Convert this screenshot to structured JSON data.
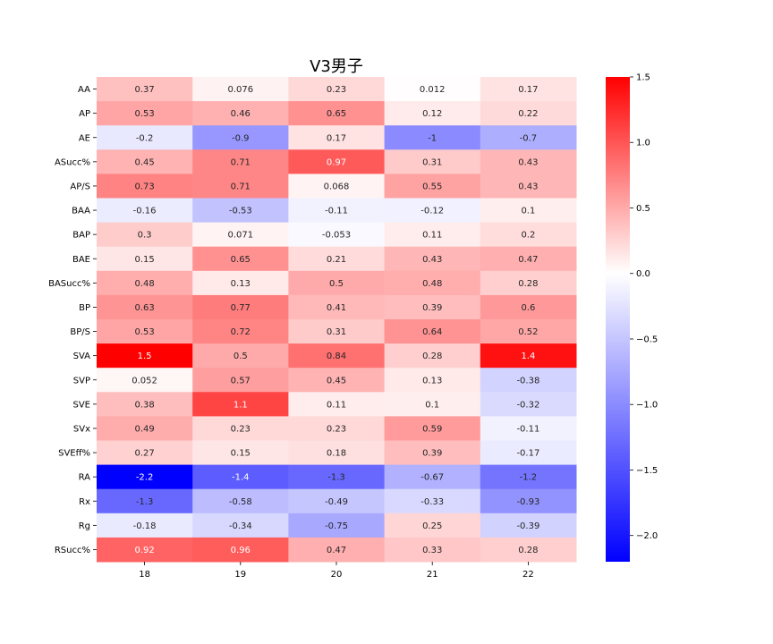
{
  "chart_data": {
    "type": "heatmap",
    "title": "V3男子",
    "xlabel": "",
    "ylabel": "",
    "x_categories": [
      "18",
      "19",
      "20",
      "21",
      "22"
    ],
    "y_categories": [
      "AA",
      "AP",
      "AE",
      "ASucc%",
      "AP/S",
      "BAA",
      "BAP",
      "BAE",
      "BASucc%",
      "BP",
      "BP/S",
      "SVA",
      "SVP",
      "SVE",
      "SVx",
      "SVEff%",
      "RA",
      "Rx",
      "Rg",
      "RSucc%"
    ],
    "values": [
      [
        0.37,
        0.076,
        0.23,
        0.012,
        0.17
      ],
      [
        0.53,
        0.46,
        0.65,
        0.12,
        0.22
      ],
      [
        -0.2,
        -0.9,
        0.17,
        -1,
        -0.7
      ],
      [
        0.45,
        0.71,
        0.97,
        0.31,
        0.43
      ],
      [
        0.73,
        0.71,
        0.068,
        0.55,
        0.43
      ],
      [
        -0.16,
        -0.53,
        -0.11,
        -0.12,
        0.1
      ],
      [
        0.3,
        0.071,
        -0.053,
        0.11,
        0.2
      ],
      [
        0.15,
        0.65,
        0.21,
        0.43,
        0.47
      ],
      [
        0.48,
        0.13,
        0.5,
        0.48,
        0.28
      ],
      [
        0.63,
        0.77,
        0.41,
        0.39,
        0.6
      ],
      [
        0.53,
        0.72,
        0.31,
        0.64,
        0.52
      ],
      [
        1.5,
        0.5,
        0.84,
        0.28,
        1.4
      ],
      [
        0.052,
        0.57,
        0.45,
        0.13,
        -0.38
      ],
      [
        0.38,
        1.1,
        0.11,
        0.1,
        -0.32
      ],
      [
        0.49,
        0.23,
        0.23,
        0.59,
        -0.11
      ],
      [
        0.27,
        0.15,
        0.18,
        0.39,
        -0.17
      ],
      [
        -2.2,
        -1.4,
        -1.3,
        -0.67,
        -1.2
      ],
      [
        -1.3,
        -0.58,
        -0.49,
        -0.33,
        -0.93
      ],
      [
        -0.18,
        -0.34,
        -0.75,
        0.25,
        -0.39
      ],
      [
        0.92,
        0.96,
        0.47,
        0.33,
        0.28
      ]
    ],
    "colormap": "bwr",
    "color_range": [
      -2.2,
      1.5
    ],
    "colorbar_ticks": [
      1.5,
      1.0,
      0.5,
      0.0,
      -0.5,
      -1.0,
      -1.5,
      -2.0
    ],
    "colorbar_tick_labels": [
      "1.5",
      "1.0",
      "0.5",
      "0.0",
      "−0.5",
      "−1.0",
      "−1.5",
      "−2.0"
    ],
    "colors": {
      "low": "#0000ff",
      "mid": "#ffffff",
      "high": "#ff0000"
    },
    "annotations": true,
    "legend": "colorbar-right"
  }
}
